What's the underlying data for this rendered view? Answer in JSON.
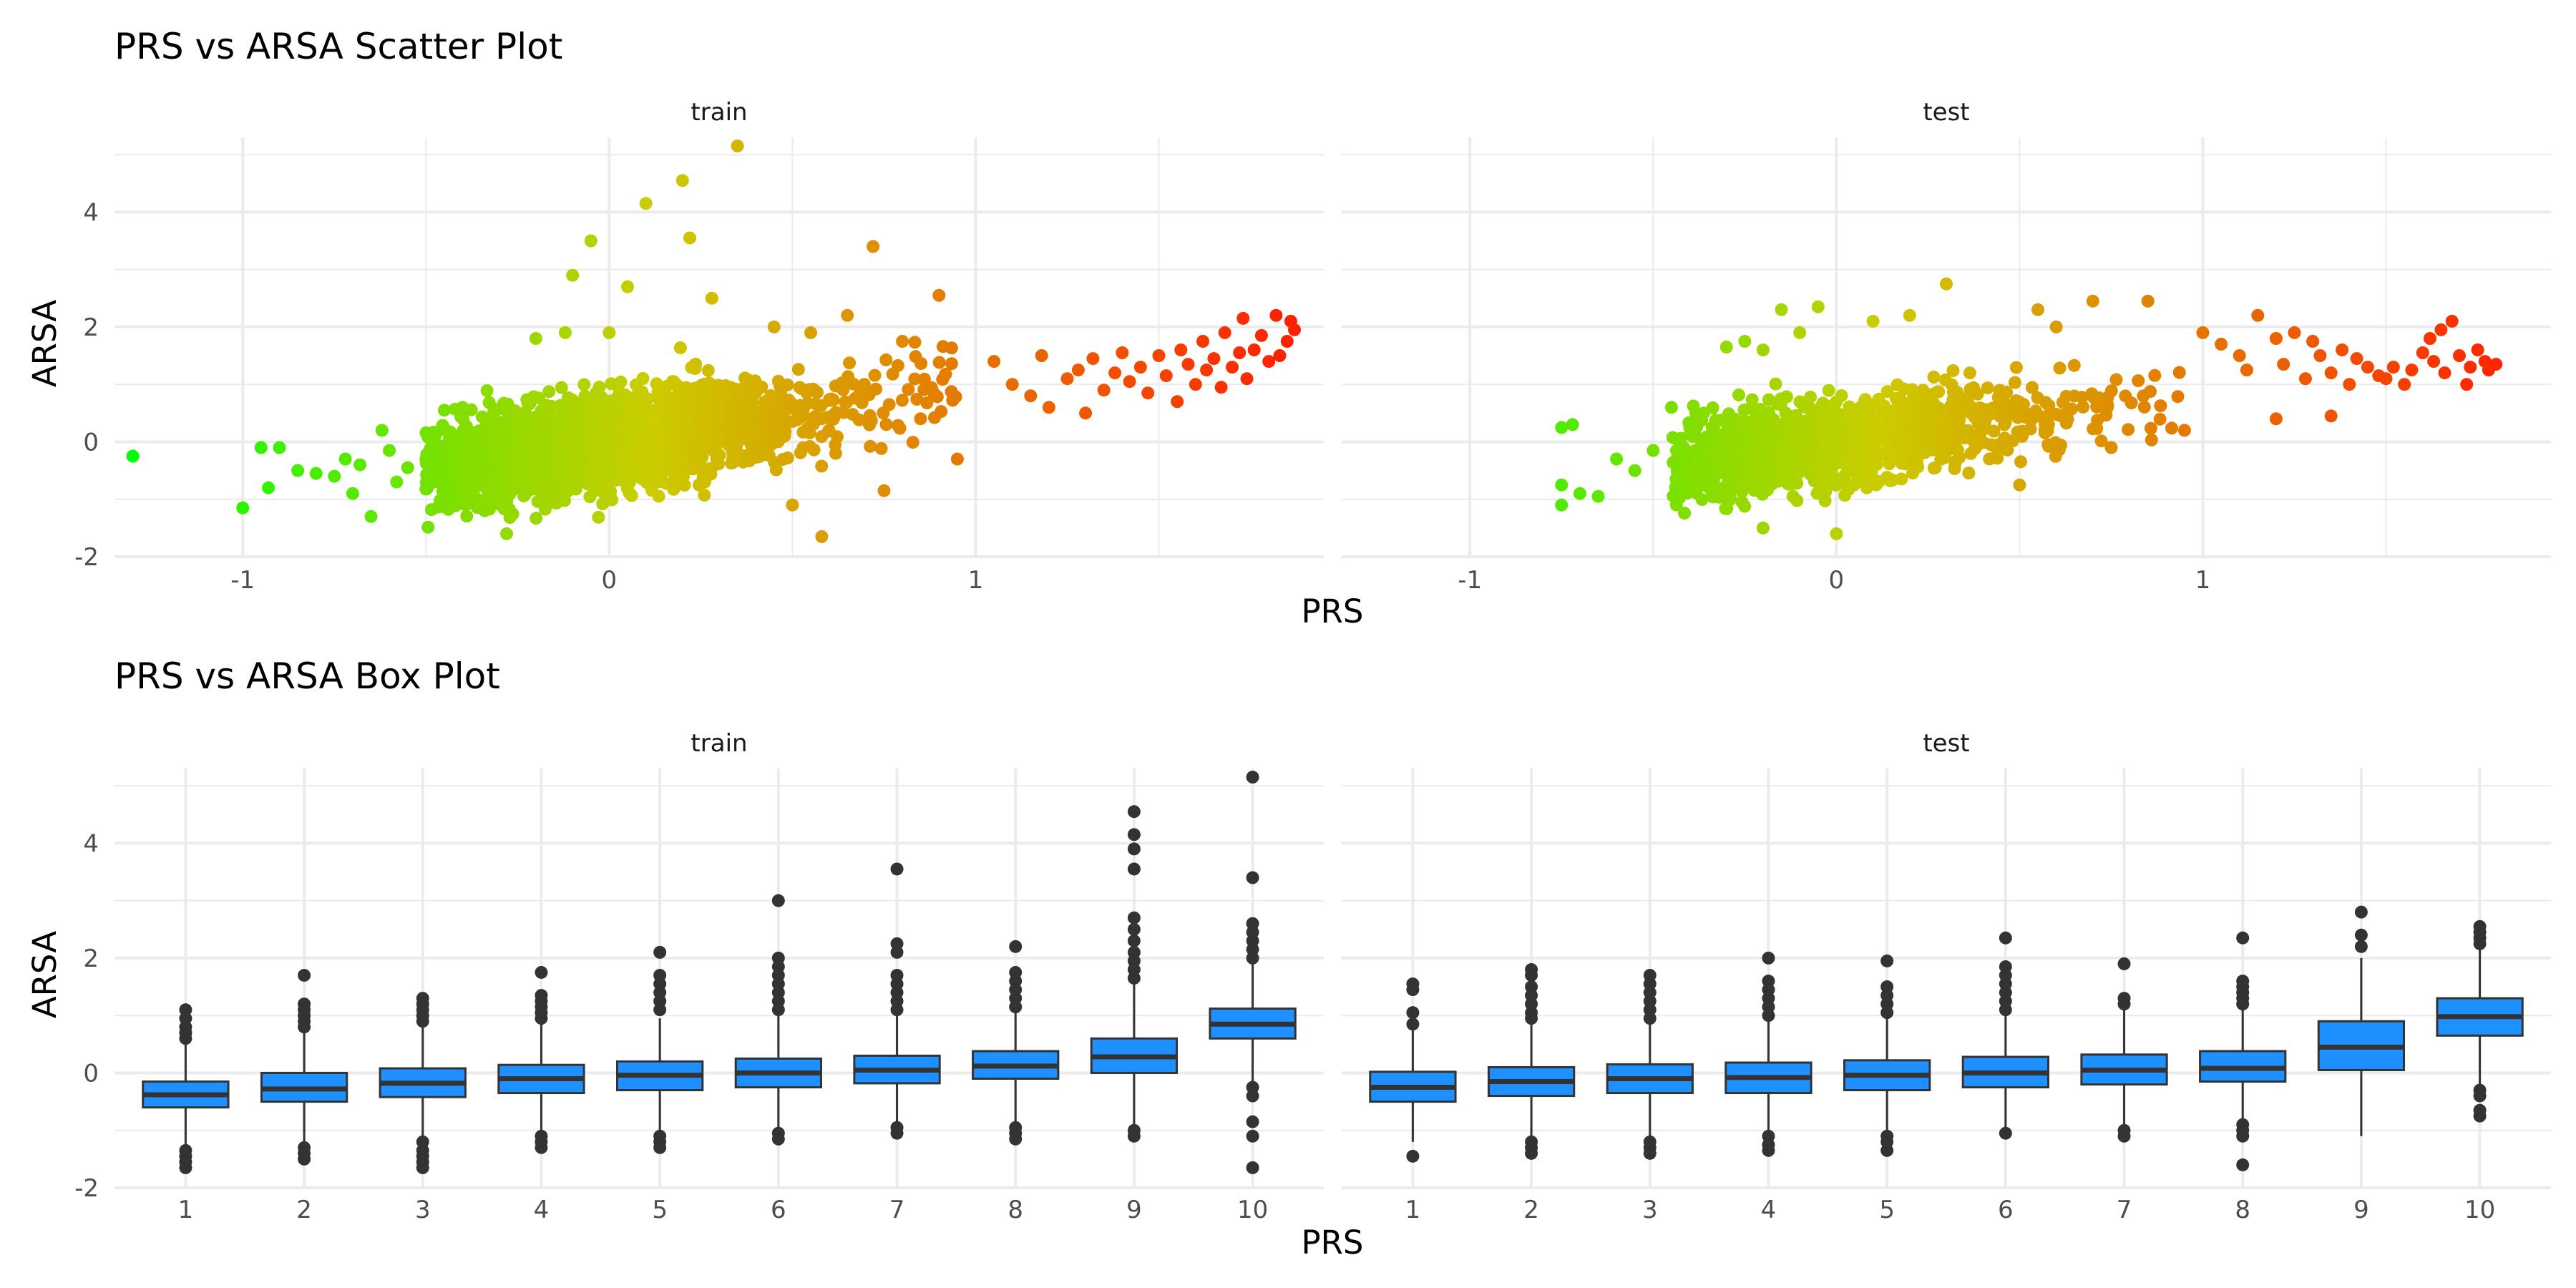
{
  "chart_data": [
    {
      "type": "scatter",
      "title": "PRS vs ARSA Scatter Plot",
      "xlabel": "PRS",
      "ylabel": "ARSA",
      "xlim": [
        -1.35,
        1.95
      ],
      "ylim": [
        -2.0,
        5.3
      ],
      "xticks": [
        "-1",
        "0",
        "1"
      ],
      "yticks": [
        "-2",
        "0",
        "2",
        "4"
      ],
      "color_scale": {
        "low": "#00ff00",
        "mid": "#cccc00",
        "high": "#ff2000"
      },
      "grid": true,
      "legend": "none",
      "facets": [
        {
          "label": "train",
          "bulk": {
            "count": 2600,
            "x_range": [
              -0.5,
              0.95
            ],
            "x_center": -0.05,
            "slope": 0.95,
            "intercept": 0.0,
            "spread": 0.38
          },
          "points": [
            [
              -1.3,
              -0.25
            ],
            [
              -1.0,
              -1.15
            ],
            [
              -0.95,
              -0.1
            ],
            [
              -0.9,
              -0.1
            ],
            [
              -0.93,
              -0.8
            ],
            [
              -0.85,
              -0.5
            ],
            [
              -0.8,
              -0.55
            ],
            [
              -0.75,
              -0.6
            ],
            [
              -0.72,
              -0.3
            ],
            [
              -0.7,
              -0.9
            ],
            [
              -0.68,
              -0.4
            ],
            [
              -0.65,
              -1.3
            ],
            [
              -0.62,
              0.2
            ],
            [
              -0.6,
              -0.15
            ],
            [
              -0.58,
              -0.7
            ],
            [
              -0.55,
              -0.45
            ],
            [
              -0.5,
              -0.3
            ],
            [
              -0.45,
              0.55
            ],
            [
              -0.4,
              0.6
            ],
            [
              -0.28,
              -1.6
            ],
            [
              -0.2,
              1.8
            ],
            [
              -0.12,
              1.9
            ],
            [
              -0.1,
              2.9
            ],
            [
              -0.05,
              3.5
            ],
            [
              0.0,
              1.9
            ],
            [
              0.05,
              2.7
            ],
            [
              0.1,
              4.15
            ],
            [
              0.2,
              4.55
            ],
            [
              0.22,
              3.55
            ],
            [
              0.28,
              2.5
            ],
            [
              0.35,
              5.15
            ],
            [
              0.5,
              -1.1
            ],
            [
              0.58,
              -1.65
            ],
            [
              0.72,
              3.4
            ],
            [
              0.75,
              -0.85
            ],
            [
              0.9,
              2.55
            ],
            [
              0.95,
              -0.3
            ],
            [
              1.05,
              1.4
            ],
            [
              1.1,
              1.0
            ],
            [
              1.15,
              0.8
            ],
            [
              1.18,
              1.5
            ],
            [
              1.2,
              0.6
            ],
            [
              1.25,
              1.1
            ],
            [
              1.28,
              1.25
            ],
            [
              1.3,
              0.5
            ],
            [
              1.32,
              1.45
            ],
            [
              1.35,
              0.9
            ],
            [
              1.38,
              1.2
            ],
            [
              1.4,
              1.55
            ],
            [
              1.42,
              1.05
            ],
            [
              1.45,
              1.3
            ],
            [
              1.47,
              0.85
            ],
            [
              1.5,
              1.5
            ],
            [
              1.52,
              1.15
            ],
            [
              1.55,
              0.7
            ],
            [
              1.56,
              1.6
            ],
            [
              1.58,
              1.35
            ],
            [
              1.6,
              1.0
            ],
            [
              1.62,
              1.75
            ],
            [
              1.63,
              1.25
            ],
            [
              1.65,
              1.45
            ],
            [
              1.67,
              0.95
            ],
            [
              1.68,
              1.9
            ],
            [
              1.7,
              1.3
            ],
            [
              1.72,
              1.55
            ],
            [
              1.73,
              2.15
            ],
            [
              1.74,
              1.1
            ],
            [
              1.76,
              1.6
            ],
            [
              1.78,
              1.85
            ],
            [
              1.8,
              1.4
            ],
            [
              1.82,
              2.2
            ],
            [
              1.83,
              1.5
            ],
            [
              1.85,
              1.75
            ],
            [
              1.86,
              2.1
            ],
            [
              1.87,
              1.95
            ],
            [
              0.6,
              0.2
            ],
            [
              0.55,
              1.9
            ],
            [
              0.8,
              1.75
            ],
            [
              0.45,
              2.0
            ],
            [
              0.65,
              2.2
            ]
          ]
        },
        {
          "label": "test",
          "bulk": {
            "count": 1300,
            "x_range": [
              -0.45,
              0.95
            ],
            "x_center": -0.05,
            "slope": 0.9,
            "intercept": 0.0,
            "spread": 0.35
          },
          "points": [
            [
              -0.75,
              0.25
            ],
            [
              -0.75,
              -0.75
            ],
            [
              -0.75,
              -1.1
            ],
            [
              -0.72,
              0.3
            ],
            [
              -0.7,
              -0.9
            ],
            [
              -0.65,
              -0.95
            ],
            [
              -0.6,
              -0.3
            ],
            [
              -0.55,
              -0.5
            ],
            [
              -0.5,
              -0.15
            ],
            [
              -0.45,
              0.6
            ],
            [
              -0.3,
              1.65
            ],
            [
              -0.25,
              1.75
            ],
            [
              -0.2,
              1.6
            ],
            [
              -0.15,
              2.3
            ],
            [
              -0.1,
              1.9
            ],
            [
              -0.05,
              2.35
            ],
            [
              0.0,
              -1.6
            ],
            [
              -0.2,
              -1.5
            ],
            [
              0.1,
              2.1
            ],
            [
              0.2,
              2.2
            ],
            [
              0.3,
              2.75
            ],
            [
              0.5,
              -0.75
            ],
            [
              0.55,
              2.3
            ],
            [
              0.6,
              2.0
            ],
            [
              0.7,
              2.45
            ],
            [
              0.75,
              -0.1
            ],
            [
              0.85,
              2.45
            ],
            [
              0.95,
              0.2
            ],
            [
              1.05,
              1.7
            ],
            [
              1.1,
              1.5
            ],
            [
              1.12,
              1.25
            ],
            [
              1.15,
              2.2
            ],
            [
              1.2,
              1.8
            ],
            [
              1.22,
              1.35
            ],
            [
              1.25,
              1.9
            ],
            [
              1.28,
              1.1
            ],
            [
              1.3,
              1.75
            ],
            [
              1.32,
              1.5
            ],
            [
              1.35,
              1.2
            ],
            [
              1.38,
              1.6
            ],
            [
              1.4,
              1.0
            ],
            [
              1.42,
              1.45
            ],
            [
              1.45,
              1.3
            ],
            [
              1.48,
              1.15
            ],
            [
              1.5,
              1.1
            ],
            [
              1.52,
              1.3
            ],
            [
              1.55,
              1.0
            ],
            [
              1.57,
              1.25
            ],
            [
              1.6,
              1.55
            ],
            [
              1.62,
              1.8
            ],
            [
              1.63,
              1.4
            ],
            [
              1.65,
              1.95
            ],
            [
              1.66,
              1.2
            ],
            [
              1.68,
              2.1
            ],
            [
              1.7,
              1.5
            ],
            [
              1.72,
              1.0
            ],
            [
              1.73,
              1.3
            ],
            [
              1.75,
              1.6
            ],
            [
              1.77,
              1.4
            ],
            [
              1.78,
              1.25
            ],
            [
              1.8,
              1.35
            ],
            [
              1.2,
              0.4
            ],
            [
              1.35,
              0.45
            ],
            [
              1.0,
              1.9
            ]
          ]
        }
      ]
    },
    {
      "type": "box",
      "title": "PRS vs ARSA Box Plot",
      "xlabel": "PRS",
      "ylabel": "ARSA",
      "categories": [
        "1",
        "2",
        "3",
        "4",
        "5",
        "6",
        "7",
        "8",
        "9",
        "10"
      ],
      "ylim": [
        -2.0,
        5.3
      ],
      "yticks": [
        "-2",
        "0",
        "2",
        "4"
      ],
      "box_color": "#1e90ff",
      "grid": true,
      "legend": "none",
      "facets": [
        {
          "label": "train",
          "boxes": [
            {
              "q1": -0.6,
              "median": -0.38,
              "q3": -0.15,
              "low": -1.3,
              "high": 0.55,
              "outliers": [
                1.1,
                0.95,
                0.8,
                0.7,
                0.6,
                -1.35,
                -1.45,
                -1.55,
                -1.65
              ]
            },
            {
              "q1": -0.5,
              "median": -0.28,
              "q3": 0.0,
              "low": -1.2,
              "high": 0.75,
              "outliers": [
                1.7,
                1.2,
                1.1,
                1.0,
                0.9,
                0.8,
                -1.3,
                -1.4,
                -1.5
              ]
            },
            {
              "q1": -0.42,
              "median": -0.18,
              "q3": 0.08,
              "low": -1.1,
              "high": 0.8,
              "outliers": [
                1.3,
                1.2,
                1.1,
                1.0,
                0.9,
                -1.2,
                -1.35,
                -1.45,
                -1.55,
                -1.65
              ]
            },
            {
              "q1": -0.35,
              "median": -0.1,
              "q3": 0.14,
              "low": -1.0,
              "high": 0.85,
              "outliers": [
                1.75,
                1.35,
                1.25,
                1.15,
                1.05,
                0.95,
                -1.1,
                -1.2,
                -1.3
              ]
            },
            {
              "q1": -0.3,
              "median": -0.04,
              "q3": 0.2,
              "low": -1.05,
              "high": 0.95,
              "outliers": [
                2.1,
                1.7,
                1.55,
                1.4,
                1.25,
                1.1,
                -1.1,
                -1.2,
                -1.3
              ]
            },
            {
              "q1": -0.25,
              "median": 0.0,
              "q3": 0.25,
              "low": -1.0,
              "high": 1.0,
              "outliers": [
                3.0,
                2.0,
                1.85,
                1.7,
                1.55,
                1.4,
                1.25,
                1.1,
                -1.05,
                -1.15
              ]
            },
            {
              "q1": -0.18,
              "median": 0.05,
              "q3": 0.3,
              "low": -0.9,
              "high": 1.05,
              "outliers": [
                3.55,
                2.25,
                2.1,
                1.7,
                1.55,
                1.4,
                1.25,
                1.1,
                -0.95,
                -1.05
              ]
            },
            {
              "q1": -0.1,
              "median": 0.12,
              "q3": 0.38,
              "low": -0.85,
              "high": 1.1,
              "outliers": [
                2.2,
                1.75,
                1.6,
                1.45,
                1.3,
                1.15,
                -0.95,
                -1.05,
                -1.15
              ]
            },
            {
              "q1": 0.0,
              "median": 0.28,
              "q3": 0.6,
              "low": -0.95,
              "high": 1.55,
              "outliers": [
                4.55,
                4.15,
                3.9,
                3.55,
                2.7,
                2.5,
                2.3,
                2.1,
                1.95,
                1.8,
                1.65,
                -1.0,
                -1.1
              ]
            },
            {
              "q1": 0.6,
              "median": 0.85,
              "q3": 1.12,
              "low": -0.2,
              "high": 1.9,
              "outliers": [
                5.15,
                3.4,
                2.6,
                2.45,
                2.3,
                2.15,
                2.0,
                -0.25,
                -0.4,
                -0.85,
                -1.1,
                -1.65
              ]
            }
          ]
        },
        {
          "label": "test",
          "boxes": [
            {
              "q1": -0.5,
              "median": -0.25,
              "q3": 0.02,
              "low": -1.2,
              "high": 0.75,
              "outliers": [
                1.55,
                1.45,
                1.05,
                0.85,
                -1.45
              ]
            },
            {
              "q1": -0.4,
              "median": -0.15,
              "q3": 0.1,
              "low": -1.15,
              "high": 0.85,
              "outliers": [
                1.8,
                1.7,
                1.5,
                1.35,
                1.2,
                1.05,
                0.95,
                -1.2,
                -1.3,
                -1.4
              ]
            },
            {
              "q1": -0.35,
              "median": -0.1,
              "q3": 0.15,
              "low": -1.1,
              "high": 0.9,
              "outliers": [
                1.7,
                1.55,
                1.4,
                1.25,
                1.1,
                0.95,
                -1.2,
                -1.3,
                -1.4
              ]
            },
            {
              "q1": -0.35,
              "median": -0.08,
              "q3": 0.18,
              "low": -1.0,
              "high": 0.95,
              "outliers": [
                2.0,
                1.6,
                1.45,
                1.3,
                1.15,
                1.0,
                -1.1,
                -1.25,
                -1.35
              ]
            },
            {
              "q1": -0.3,
              "median": -0.04,
              "q3": 0.22,
              "low": -1.0,
              "high": 1.0,
              "outliers": [
                1.95,
                1.5,
                1.35,
                1.2,
                1.05,
                -1.1,
                -1.2,
                -1.35
              ]
            },
            {
              "q1": -0.25,
              "median": 0.0,
              "q3": 0.28,
              "low": -0.95,
              "high": 1.05,
              "outliers": [
                2.35,
                1.85,
                1.7,
                1.55,
                1.4,
                1.25,
                1.1,
                -1.05
              ]
            },
            {
              "q1": -0.2,
              "median": 0.05,
              "q3": 0.32,
              "low": -0.95,
              "high": 1.1,
              "outliers": [
                1.9,
                1.3,
                1.2,
                -1.0,
                -1.1
              ]
            },
            {
              "q1": -0.15,
              "median": 0.08,
              "q3": 0.38,
              "low": -0.85,
              "high": 1.15,
              "outliers": [
                2.35,
                1.6,
                1.5,
                1.4,
                1.3,
                1.2,
                -0.9,
                -1.0,
                -1.1,
                -1.6
              ]
            },
            {
              "q1": 0.05,
              "median": 0.45,
              "q3": 0.9,
              "low": -1.1,
              "high": 2.0,
              "outliers": [
                2.8,
                2.4,
                2.2
              ]
            },
            {
              "q1": 0.65,
              "median": 0.98,
              "q3": 1.3,
              "low": -0.25,
              "high": 2.2,
              "outliers": [
                2.55,
                2.45,
                2.35,
                2.25,
                -0.3,
                -0.4,
                -0.65,
                -0.75
              ]
            }
          ]
        }
      ]
    }
  ]
}
